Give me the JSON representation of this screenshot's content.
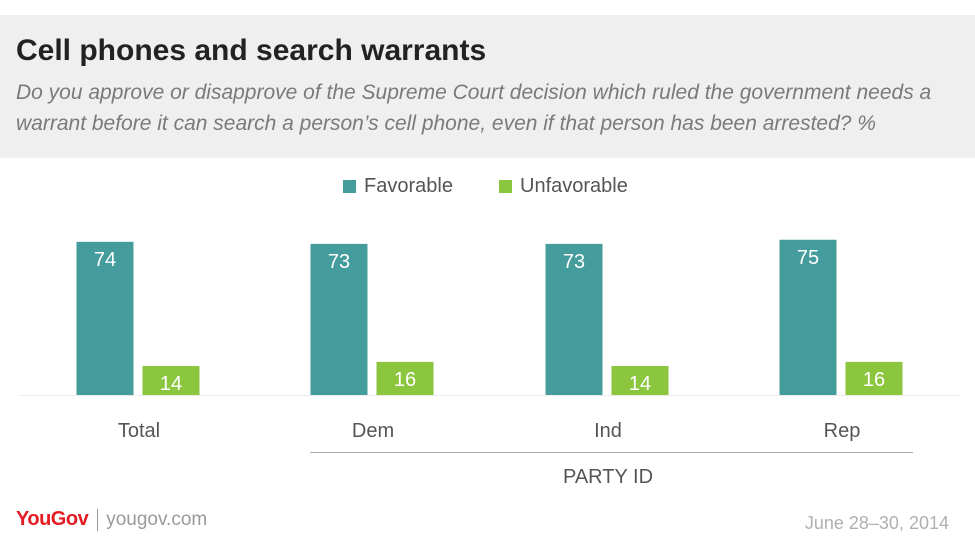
{
  "title": "Cell phones and search warrants",
  "subtitle": "Do you approve or disapprove of the Supreme Court decision which ruled the government needs a warrant before it can search a person’s cell phone, even if that person has been arrested? %",
  "footer": {
    "logo_you": "You",
    "logo_gov": "Gov",
    "website": "yougov.com",
    "date": "June 28–30, 2014"
  },
  "colors": {
    "favorable": "#449c9c",
    "unfavorable": "#8cc63f",
    "brand": "#e31b23"
  },
  "chart_data": {
    "type": "bar",
    "categories": [
      "Total",
      "Dem",
      "Ind",
      "Rep"
    ],
    "series": [
      {
        "name": "Favorable",
        "values": [
          74,
          73,
          73,
          75
        ]
      },
      {
        "name": "Unfavorable",
        "values": [
          14,
          16,
          14,
          16
        ]
      }
    ],
    "group_label": "PARTY ID",
    "group_members": [
      "Dem",
      "Ind",
      "Rep"
    ],
    "legend_position": "top-center",
    "data_labels": true,
    "grid": false
  }
}
